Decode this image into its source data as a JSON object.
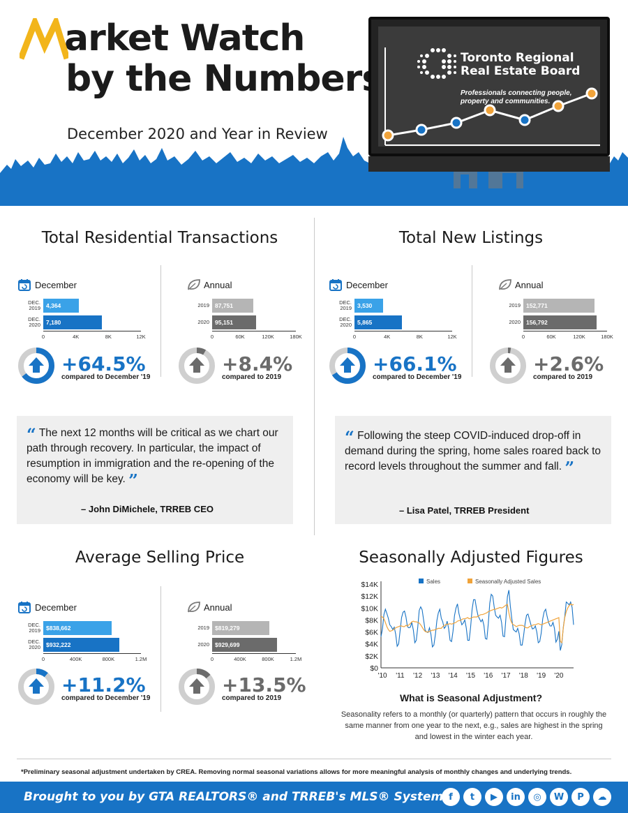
{
  "header": {
    "title_line1_rest": "arket Watch",
    "title_line2": "by the Numbers",
    "subtitle": "December 2020 and Year in Review",
    "board_name_line1": "Toronto Regional",
    "board_name_line2": "Real Estate Board",
    "board_tagline_line1": "Professionals connecting people,",
    "board_tagline_line2": "property and communities.",
    "colors": {
      "blue": "#1873c5",
      "orange": "#f0a33a",
      "yellow": "#f2b51b"
    }
  },
  "transactions": {
    "title": "Total Residential Transactions",
    "december": {
      "label": "December",
      "rows": [
        {
          "label_l1": "DEC.",
          "label_l2": "2019",
          "value": 4364,
          "value_text": "4,364"
        },
        {
          "label_l1": "DEC.",
          "label_l2": "2020",
          "value": 7180,
          "value_text": "7,180"
        }
      ],
      "max": 12000,
      "ticks": [
        "0",
        "4K",
        "8K",
        "12K"
      ],
      "pct": "+64.5%",
      "compare": "compared to December '19",
      "donut_fraction": 0.645
    },
    "annual": {
      "label": "Annual",
      "rows": [
        {
          "label_l1": "2019",
          "value": 87751,
          "value_text": "87,751"
        },
        {
          "label_l1": "2020",
          "value": 95151,
          "value_text": "95,151"
        }
      ],
      "max": 180000,
      "ticks": [
        "0",
        "60K",
        "120K",
        "180K"
      ],
      "pct": "+8.4%",
      "compare": "compared to 2019",
      "donut_fraction": 0.084
    }
  },
  "listings": {
    "title": "Total New Listings",
    "december": {
      "label": "December",
      "rows": [
        {
          "label_l1": "DEC.",
          "label_l2": "2019",
          "value": 3530,
          "value_text": "3,530"
        },
        {
          "label_l1": "DEC.",
          "label_l2": "2020",
          "value": 5865,
          "value_text": "5,865"
        }
      ],
      "max": 12000,
      "ticks": [
        "0",
        "4K",
        "8K",
        "12K"
      ],
      "pct": "+66.1%",
      "compare": "compared to December '19",
      "donut_fraction": 0.661
    },
    "annual": {
      "label": "Annual",
      "rows": [
        {
          "label_l1": "2019",
          "value": 152771,
          "value_text": "152,771"
        },
        {
          "label_l1": "2020",
          "value": 156792,
          "value_text": "156,792"
        }
      ],
      "max": 180000,
      "ticks": [
        "0",
        "60K",
        "120K",
        "180K"
      ],
      "pct": "+2.6%",
      "compare": "compared to 2019",
      "donut_fraction": 0.026
    }
  },
  "quote_ceo": {
    "text": "The next 12 months will be critical as we chart our path through recovery. In particular, the impact of resumption in immigration and the re-opening of the economy will be key.",
    "author": "– John DiMichele, TRREB CEO"
  },
  "quote_president": {
    "text": "Following the steep COVID-induced drop-off in demand during the spring, home sales roared back to record levels throughout the summer and fall.",
    "author": "– Lisa Patel, TRREB President"
  },
  "price": {
    "title": "Average Selling Price",
    "december": {
      "label": "December",
      "rows": [
        {
          "label_l1": "DEC.",
          "label_l2": "2019",
          "value": 838662,
          "value_text": "$838,662"
        },
        {
          "label_l1": "DEC.",
          "label_l2": "2020",
          "value": 932222,
          "value_text": "$932,222"
        }
      ],
      "max": 1200000,
      "ticks": [
        "0",
        "400K",
        "800K",
        "1.2M"
      ],
      "pct": "+11.2%",
      "compare": "compared to December '19",
      "donut_fraction": 0.112
    },
    "annual": {
      "label": "Annual",
      "rows": [
        {
          "label_l1": "2019",
          "value": 819279,
          "value_text": "$819,279"
        },
        {
          "label_l1": "2020",
          "value": 929699,
          "value_text": "$929,699"
        }
      ],
      "max": 1200000,
      "ticks": [
        "0",
        "400K",
        "800K",
        "1.2M"
      ],
      "pct": "+13.5%",
      "compare": "compared to 2019",
      "donut_fraction": 0.135
    }
  },
  "seasonal": {
    "title": "Seasonally Adjusted Figures",
    "question": "What is Seasonal Adjustment?",
    "body": "Seasonality refers to a monthly (or quarterly) pattern that occurs in roughly the same manner from one year to the next, e.g., sales are highest in the spring and lowest in the winter each year."
  },
  "chart_data": {
    "type": "line",
    "title": "",
    "xlabel": "",
    "ylabel": "",
    "ylim": [
      0,
      14000
    ],
    "y_ticks": [
      "$0",
      "$2K",
      "$4K",
      "$6K",
      "$8K",
      "$10K",
      "$12K",
      "$14K"
    ],
    "x_ticks": [
      "'10",
      "'11",
      "'12",
      "'13",
      "'14",
      "'15",
      "'16",
      "'17",
      "'18",
      "'19",
      "'20"
    ],
    "x_start": 2010,
    "legend_position": "top",
    "series": [
      {
        "name": "Sales",
        "color": "#1873c5",
        "values": [
          5200,
          6500,
          8900,
          9800,
          9100,
          8300,
          7200,
          6900,
          6400,
          6800,
          5600,
          3600,
          4000,
          6200,
          8400,
          9300,
          9500,
          8500,
          6900,
          6700,
          6800,
          7600,
          6300,
          4200,
          4600,
          6800,
          9600,
          10200,
          9700,
          8000,
          6300,
          6000,
          5900,
          6700,
          5600,
          3500,
          3800,
          5600,
          7900,
          9200,
          9800,
          8300,
          7700,
          6600,
          6900,
          7800,
          6600,
          4600,
          4400,
          6100,
          8700,
          10000,
          10700,
          9100,
          8100,
          7200,
          7500,
          8000,
          6700,
          4600,
          4600,
          6900,
          9800,
          11400,
          11400,
          9900,
          8700,
          8200,
          7700,
          8100,
          7100,
          4900,
          4800,
          7400,
          10800,
          12300,
          12000,
          10200,
          8800,
          8500,
          8300,
          8800,
          7600,
          5300,
          5200,
          8400,
          11900,
          13000,
          10300,
          8200,
          6400,
          6200,
          6000,
          6600,
          5700,
          3800,
          3800,
          5400,
          7400,
          8800,
          9000,
          8100,
          7200,
          6500,
          6600,
          7000,
          6000,
          4200,
          4400,
          5800,
          8200,
          9400,
          9800,
          8600,
          7600,
          7000,
          7000,
          7600,
          6600,
          4300,
          4800,
          6100,
          2900,
          3900,
          6800,
          8600,
          11000,
          10800,
          10500,
          11000,
          10100,
          7200
        ]
      },
      {
        "name": "Seasonally Adjusted Sales",
        "color": "#f0a33a",
        "values": [
          8600,
          8500,
          8200,
          7600,
          6900,
          6400,
          6100,
          6200,
          6300,
          6500,
          6700,
          6800,
          6900,
          7000,
          7000,
          6900,
          6900,
          7100,
          7000,
          7200,
          7400,
          7700,
          7800,
          7700,
          7700,
          7600,
          7500,
          7200,
          6800,
          6400,
          6100,
          6000,
          6000,
          6100,
          6200,
          6300,
          6300,
          6400,
          6500,
          6600,
          6600,
          6600,
          6900,
          7100,
          7200,
          7300,
          7300,
          7400,
          7300,
          7400,
          7500,
          7600,
          7800,
          7900,
          7900,
          8100,
          8200,
          8200,
          8300,
          8400,
          8200,
          8300,
          8400,
          8500,
          8500,
          8500,
          8600,
          8800,
          8900,
          8900,
          9000,
          9100,
          9200,
          9400,
          9500,
          9600,
          9700,
          9800,
          9800,
          9900,
          10000,
          10100,
          10000,
          10100,
          10300,
          10500,
          10600,
          9200,
          8100,
          7500,
          7200,
          7100,
          6900,
          7000,
          7100,
          7100,
          7100,
          7000,
          6800,
          6700,
          6700,
          6900,
          7000,
          7100,
          7200,
          7200,
          7300,
          7400,
          7300,
          7200,
          7300,
          7400,
          7500,
          7600,
          7700,
          7800,
          7900,
          8000,
          8100,
          8200,
          8300,
          8400,
          4400,
          4200,
          6700,
          8400,
          9400,
          10000,
          10400,
          10700,
          10500,
          10600
        ]
      }
    ]
  },
  "footer": {
    "footnote": "*Preliminary seasonal adjustment undertaken by CREA. Removing normal seasonal variations allows for more meaningful analysis of monthly changes and underlying trends.",
    "brought": "Brought to you by GTA REALTORS® and TRREB's MLS® System",
    "socials": [
      {
        "name": "facebook",
        "glyph": "f"
      },
      {
        "name": "twitter",
        "glyph": "t"
      },
      {
        "name": "youtube",
        "glyph": "▶"
      },
      {
        "name": "linkedin",
        "glyph": "in"
      },
      {
        "name": "instagram",
        "glyph": "◎"
      },
      {
        "name": "wordpress",
        "glyph": "W"
      },
      {
        "name": "pinterest",
        "glyph": "P"
      },
      {
        "name": "soundcloud",
        "glyph": "☁"
      }
    ]
  }
}
